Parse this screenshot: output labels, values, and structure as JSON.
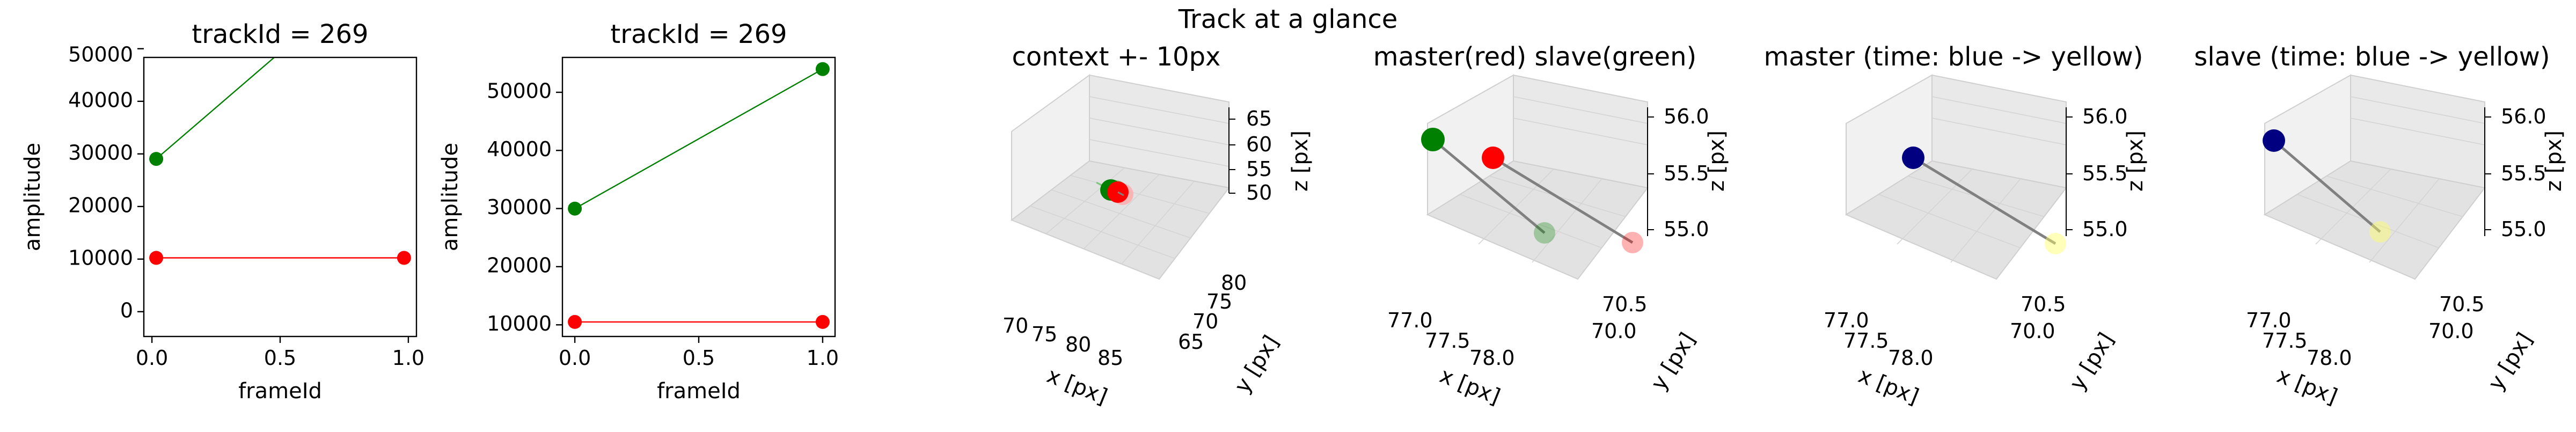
{
  "suptitle": "Track at a glance",
  "chart_data": [
    {
      "type": "line",
      "title": "trackId = 269",
      "xlabel": "frameId",
      "ylabel": "amplitude",
      "xlim": [
        -0.05,
        1.05
      ],
      "ylim": [
        -5000,
        50000
      ],
      "x_ticks": [
        "0.0",
        "0.5",
        "1.0"
      ],
      "y_ticks": [
        "0",
        "10000",
        "20000",
        "30000",
        "40000",
        "50000"
      ],
      "series": [
        {
          "color": "#008000",
          "x": [
            0,
            1
          ],
          "values": [
            30000,
            72000
          ]
        },
        {
          "color": "#ff0000",
          "x": [
            0,
            1
          ],
          "values": [
            10500,
            10500
          ]
        }
      ]
    },
    {
      "type": "line",
      "title": "trackId = 269",
      "xlabel": "frameId",
      "ylabel": "amplitude",
      "xlim": [
        -0.05,
        1.05
      ],
      "ylim": [
        8000,
        56000
      ],
      "x_ticks": [
        "0.0",
        "0.5",
        "1.0"
      ],
      "y_ticks": [
        "10000",
        "20000",
        "30000",
        "40000",
        "50000"
      ],
      "series": [
        {
          "color": "#008000",
          "x": [
            0,
            1
          ],
          "values": [
            30000,
            54000
          ]
        },
        {
          "color": "#ff0000",
          "x": [
            0,
            1
          ],
          "values": [
            10500,
            10500
          ]
        }
      ]
    },
    {
      "type": "scatter",
      "title": "context +- 10px",
      "xlabel": "x [px]",
      "ylabel": "y [px]",
      "zlabel": "z [px]",
      "x_ticks": [
        "70",
        "75",
        "80",
        "85"
      ],
      "y_ticks": [
        "65",
        "70",
        "75",
        "80"
      ],
      "z_ticks": [
        "50",
        "55",
        "60",
        "65"
      ]
    },
    {
      "type": "scatter",
      "title": "master(red) slave(green)",
      "xlabel": "x [px]",
      "ylabel": "y [px]",
      "zlabel": "z [px]",
      "x_ticks": [
        "77.0",
        "77.5",
        "78.0"
      ],
      "y_ticks": [
        "70.0",
        "70.5"
      ],
      "z_ticks": [
        "55.0",
        "55.5",
        "56.0"
      ]
    },
    {
      "type": "scatter",
      "title": "master (time: blue -> yellow)",
      "xlabel": "x [px]",
      "ylabel": "y [px]",
      "zlabel": "z [px]",
      "x_ticks": [
        "77.0",
        "77.5",
        "78.0"
      ],
      "y_ticks": [
        "70.0",
        "70.5"
      ],
      "z_ticks": [
        "55.0",
        "55.5",
        "56.0"
      ]
    },
    {
      "type": "scatter",
      "title": "slave (time: blue -> yellow)",
      "xlabel": "x [px]",
      "ylabel": "y [px]",
      "zlabel": "z [px]",
      "x_ticks": [
        "77.0",
        "77.5",
        "78.0"
      ],
      "y_ticks": [
        "70.0",
        "70.5"
      ],
      "z_ticks": [
        "55.0",
        "55.5",
        "56.0"
      ]
    }
  ]
}
